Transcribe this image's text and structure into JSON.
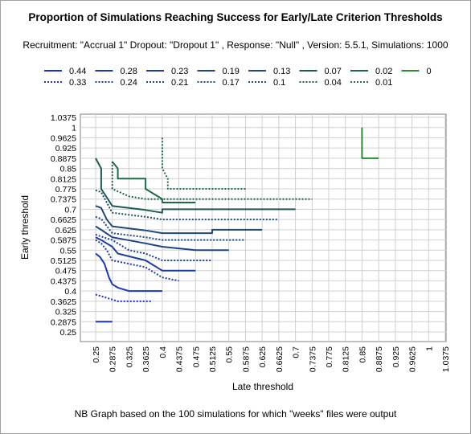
{
  "chart_data": {
    "type": "line",
    "title": "Proportion of Simulations Reaching Success for Early/Late Criterion Thresholds",
    "subtitle": "Recruitment: \"Accrual 1\" Dropout: \"Dropout 1\" , Response: \"Null\" , Version: 5.5.1, Simulations: 1000",
    "footnote": "NB Graph based on the 100 simulations for which \"weeks\" files were output",
    "xlabel": "Late threshold",
    "ylabel": "Early threshold",
    "xlim": [
      0.25,
      1.0375
    ],
    "ylim": [
      0.25,
      1.0375
    ],
    "grid": true,
    "legend_position": "top",
    "x_ticks": [
      "0.25",
      "0.2875",
      "0.325",
      "0.3625",
      "0.4",
      "0.4375",
      "0.475",
      "0.5125",
      "0.55",
      "0.5875",
      "0.625",
      "0.6625",
      "0.7",
      "0.7375",
      "0.775",
      "0.8125",
      "0.85",
      "0.8875",
      "0.925",
      "0.9625",
      "1",
      "1.0375"
    ],
    "y_ticks": [
      "0.25",
      "0.2875",
      "0.325",
      "0.3625",
      "0.4",
      "0.4375",
      "0.475",
      "0.5125",
      "0.55",
      "0.5875",
      "0.625",
      "0.6625",
      "0.7",
      "0.7375",
      "0.775",
      "0.8125",
      "0.85",
      "0.8875",
      "0.925",
      "0.9625",
      "1",
      "1.0375"
    ],
    "series": [
      {
        "name": "0.44",
        "color": "#1a2fcf",
        "dash": "solid",
        "points": [
          [
            0.25,
            0.2875
          ],
          [
            0.2875,
            0.2875
          ]
        ]
      },
      {
        "name": "0.33",
        "color": "#1a2fcf",
        "dash": "dotted",
        "points": [
          [
            0.25,
            0.3875
          ],
          [
            0.275,
            0.375
          ],
          [
            0.3,
            0.3625
          ],
          [
            0.375,
            0.3625
          ]
        ]
      },
      {
        "name": "0.28",
        "color": "#1b36c0",
        "dash": "solid",
        "points": [
          [
            0.25,
            0.5375
          ],
          [
            0.26,
            0.525
          ],
          [
            0.27,
            0.5
          ],
          [
            0.28,
            0.45
          ],
          [
            0.2875,
            0.425
          ],
          [
            0.3,
            0.4125
          ],
          [
            0.325,
            0.4
          ],
          [
            0.4,
            0.4
          ]
        ]
      },
      {
        "name": "0.24",
        "color": "#1b3ab0",
        "dash": "dotted",
        "points": [
          [
            0.25,
            0.5875
          ],
          [
            0.2625,
            0.575
          ],
          [
            0.275,
            0.55
          ],
          [
            0.2875,
            0.5125
          ],
          [
            0.325,
            0.5
          ],
          [
            0.3625,
            0.4875
          ],
          [
            0.4,
            0.45
          ],
          [
            0.4375,
            0.4375
          ]
        ]
      },
      {
        "name": "0.23",
        "color": "#1c3da2",
        "dash": "solid",
        "points": [
          [
            0.25,
            0.5975
          ],
          [
            0.2625,
            0.5875
          ],
          [
            0.2875,
            0.5625
          ],
          [
            0.3,
            0.5375
          ],
          [
            0.3625,
            0.5125
          ],
          [
            0.4,
            0.475
          ],
          [
            0.475,
            0.475
          ]
        ]
      },
      {
        "name": "0.21",
        "color": "#1d409a",
        "dash": "dotted",
        "points": [
          [
            0.25,
            0.6075
          ],
          [
            0.2625,
            0.6
          ],
          [
            0.2875,
            0.5875
          ],
          [
            0.325,
            0.55
          ],
          [
            0.3625,
            0.5375
          ],
          [
            0.4,
            0.5125
          ],
          [
            0.475,
            0.5125
          ],
          [
            0.5125,
            0.5125
          ]
        ]
      },
      {
        "name": "0.19",
        "color": "#1e4488",
        "dash": "solid",
        "points": [
          [
            0.25,
            0.6375
          ],
          [
            0.2625,
            0.625
          ],
          [
            0.2875,
            0.5975
          ],
          [
            0.3625,
            0.575
          ],
          [
            0.4,
            0.5625
          ],
          [
            0.475,
            0.55
          ],
          [
            0.55,
            0.55
          ]
        ]
      },
      {
        "name": "0.17",
        "color": "#1e4880",
        "dash": "dotted",
        "points": [
          [
            0.25,
            0.6725
          ],
          [
            0.2625,
            0.665
          ],
          [
            0.2875,
            0.6125
          ],
          [
            0.3625,
            0.5975
          ],
          [
            0.4,
            0.5875
          ],
          [
            0.4875,
            0.5875
          ],
          [
            0.5875,
            0.5875
          ]
        ]
      },
      {
        "name": "0.13",
        "color": "#1f4a78",
        "dash": "solid",
        "points": [
          [
            0.25,
            0.7125
          ],
          [
            0.2625,
            0.705
          ],
          [
            0.275,
            0.6625
          ],
          [
            0.2875,
            0.6375
          ],
          [
            0.3625,
            0.6225
          ],
          [
            0.4,
            0.6125
          ],
          [
            0.5125,
            0.6125
          ],
          [
            0.5125,
            0.625
          ],
          [
            0.625,
            0.625
          ]
        ]
      },
      {
        "name": "0.1",
        "color": "#1f5068",
        "dash": "dotted",
        "points": [
          [
            0.25,
            0.77
          ],
          [
            0.2625,
            0.7625
          ],
          [
            0.2875,
            0.6875
          ],
          [
            0.3625,
            0.6725
          ],
          [
            0.4,
            0.6625
          ],
          [
            0.4375,
            0.6625
          ],
          [
            0.475,
            0.6625
          ],
          [
            0.6625,
            0.6625
          ]
        ]
      },
      {
        "name": "0.07",
        "color": "#1e5a52",
        "dash": "solid",
        "points": [
          [
            0.25,
            0.8875
          ],
          [
            0.2625,
            0.85
          ],
          [
            0.2625,
            0.775
          ],
          [
            0.2875,
            0.7125
          ],
          [
            0.3625,
            0.6975
          ],
          [
            0.4,
            0.6875
          ],
          [
            0.4,
            0.7
          ],
          [
            0.7,
            0.7
          ]
        ]
      },
      {
        "name": "0.04",
        "color": "#1e6050",
        "dash": "dotted",
        "points": [
          [
            0.2875,
            0.875
          ],
          [
            0.2875,
            0.8125
          ],
          [
            0.2875,
            0.775
          ],
          [
            0.325,
            0.7475
          ],
          [
            0.3625,
            0.7375
          ],
          [
            0.4,
            0.7375
          ],
          [
            0.7375,
            0.7375
          ]
        ]
      },
      {
        "name": "0.02",
        "color": "#1e6a45",
        "dash": "solid",
        "points": [
          [
            0.2875,
            0.875
          ],
          [
            0.3,
            0.85
          ],
          [
            0.3,
            0.8125
          ],
          [
            0.3625,
            0.8125
          ],
          [
            0.3625,
            0.775
          ],
          [
            0.3875,
            0.75
          ],
          [
            0.4,
            0.7375
          ],
          [
            0.4,
            0.725
          ],
          [
            0.45,
            0.725
          ],
          [
            0.475,
            0.725
          ]
        ]
      },
      {
        "name": "0.01",
        "color": "#1e7040",
        "dash": "dotted",
        "points": [
          [
            0.4,
            0.9625
          ],
          [
            0.4,
            0.8625
          ],
          [
            0.4,
            0.85
          ],
          [
            0.4125,
            0.8125
          ],
          [
            0.4125,
            0.775
          ],
          [
            0.5,
            0.775
          ],
          [
            0.5875,
            0.775
          ]
        ]
      },
      {
        "name": "0",
        "color": "#2a8a30",
        "dash": "solid",
        "points": [
          [
            0.85,
            1.0
          ],
          [
            0.85,
            0.8875
          ],
          [
            0.8875,
            0.8875
          ]
        ]
      }
    ]
  }
}
